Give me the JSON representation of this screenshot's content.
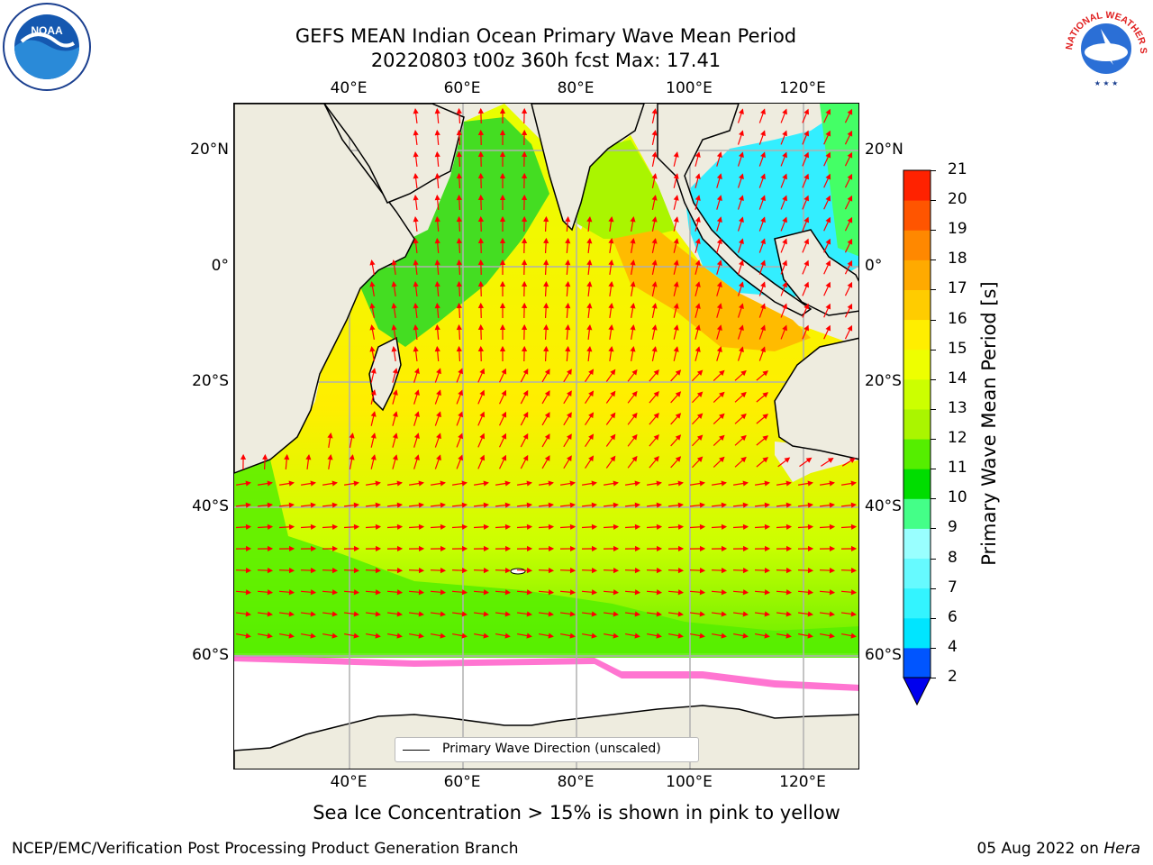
{
  "header": {
    "title_line1": "GEFS MEAN Indian Ocean Primary Wave Mean Period",
    "title_line2": "20220803 t00z 360h fcst   Max: 17.41"
  },
  "logos": {
    "left": {
      "name": "noaa-logo",
      "text": "NOAA"
    },
    "right": {
      "name": "nws-logo",
      "text": "NATIONAL WEATHER SERVICE"
    }
  },
  "map": {
    "lon_ticks": [
      "40°E",
      "60°E",
      "80°E",
      "100°E",
      "120°E"
    ],
    "lat_ticks": [
      "20°N",
      "0°",
      "20°S",
      "40°S",
      "60°S"
    ],
    "legend_label": "Primary Wave Direction (unscaled)",
    "land_color": "#eeecdf",
    "arrow_color": "#ff0000"
  },
  "colorbar": {
    "label": "Primary Wave Mean Period [s]",
    "ticks": [
      "2",
      "4",
      "6",
      "7",
      "8",
      "9",
      "10",
      "11",
      "12",
      "13",
      "14",
      "15",
      "16",
      "17",
      "18",
      "19",
      "20",
      "21"
    ],
    "colors": [
      "#0055ff",
      "#00e5ff",
      "#33f4ff",
      "#66faff",
      "#99ffff",
      "#44ff88",
      "#00dd00",
      "#55ee00",
      "#aaf500",
      "#ccff00",
      "#eeff00",
      "#ffee00",
      "#ffcc00",
      "#ffaa00",
      "#ff8800",
      "#ff5500",
      "#ff2200",
      "#ff0000"
    ],
    "extend_color": "#0000ee"
  },
  "caption": "Sea Ice Concentration > 15% is shown in pink to yellow",
  "footer": {
    "left": "NCEP/EMC/Verification Post Processing Product Generation Branch",
    "right_prefix": "05 Aug 2022 on ",
    "right_host": "Hera"
  }
}
